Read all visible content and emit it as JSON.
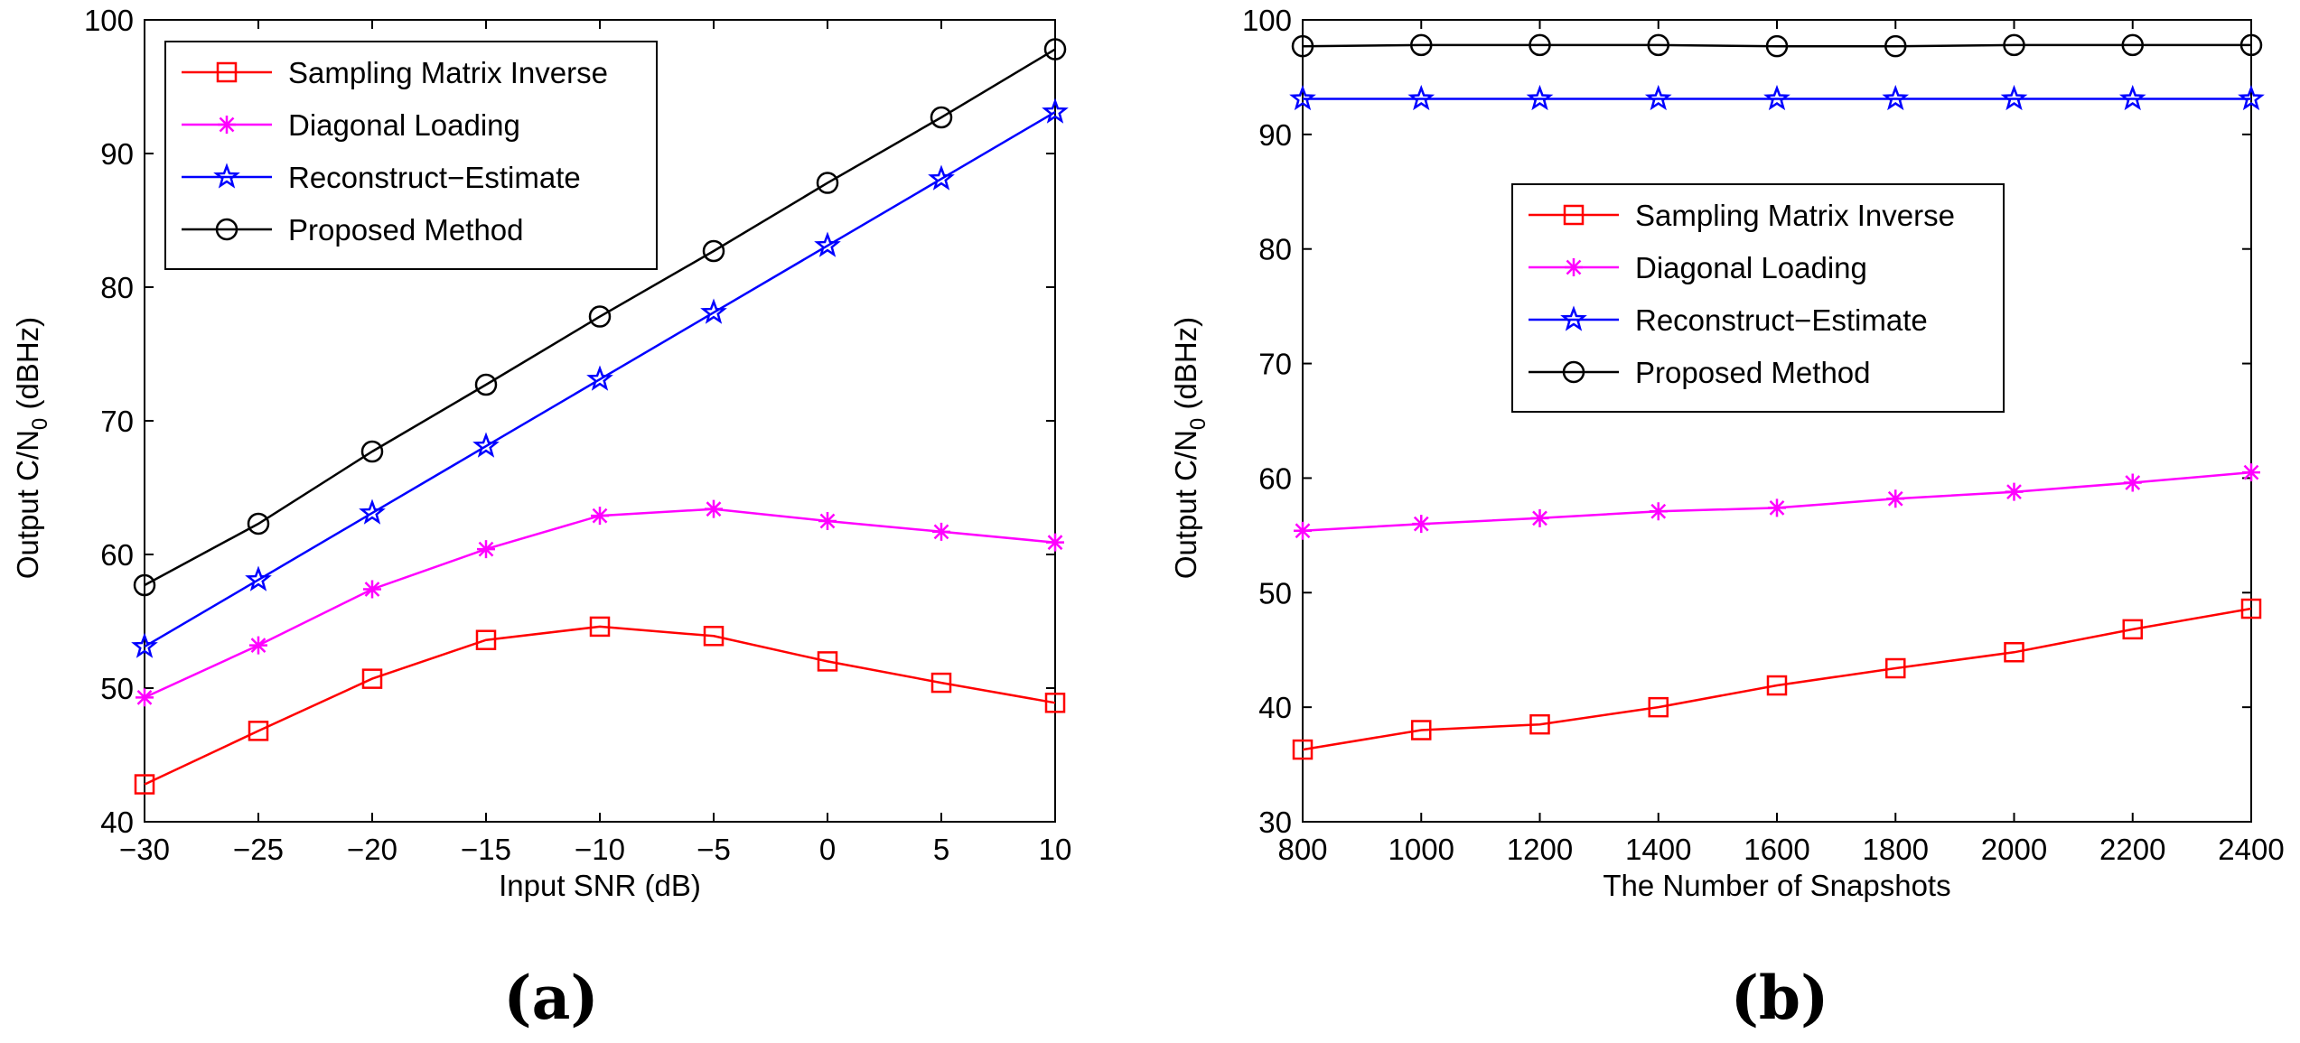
{
  "chart_data": [
    {
      "type": "line",
      "panel_label": "(a)",
      "xlabel": "Input SNR (dB)",
      "ylabel_main": "Output C/N",
      "ylabel_sub": "0",
      "ylabel_unit": " (dBHz)",
      "xlim": [
        -30,
        10
      ],
      "ylim": [
        40,
        100
      ],
      "xticks": [
        -30,
        -25,
        -20,
        -15,
        -10,
        -5,
        0,
        5,
        10
      ],
      "xtick_labels": [
        "−30",
        "−25",
        "−20",
        "−15",
        "−10",
        "−5",
        "0",
        "5",
        "10"
      ],
      "yticks": [
        40,
        50,
        60,
        70,
        80,
        90,
        100
      ],
      "ytick_labels": [
        "40",
        "50",
        "60",
        "70",
        "80",
        "90",
        "100"
      ],
      "legend_position": "top-left",
      "x": [
        -30,
        -25,
        -20,
        -15,
        -10,
        -5,
        0,
        5,
        10
      ],
      "series": [
        {
          "name": "Sampling Matrix Inverse",
          "color": "#ff0000",
          "marker": "square",
          "values": [
            42.8,
            46.8,
            50.7,
            53.6,
            54.6,
            53.9,
            52.0,
            50.4,
            48.9
          ]
        },
        {
          "name": "Diagonal Loading",
          "color": "#ff00ff",
          "marker": "asterisk",
          "values": [
            49.3,
            53.2,
            57.4,
            60.4,
            62.9,
            63.4,
            62.5,
            61.7,
            60.9
          ]
        },
        {
          "name": "Reconstruct−Estimate",
          "color": "#0000ff",
          "marker": "star",
          "values": [
            53.1,
            58.1,
            63.1,
            68.1,
            73.1,
            78.1,
            83.1,
            88.1,
            93.1
          ]
        },
        {
          "name": "Proposed Method",
          "color": "#000000",
          "marker": "circle",
          "values": [
            57.7,
            62.3,
            67.7,
            72.7,
            77.8,
            82.7,
            87.8,
            92.7,
            97.8
          ]
        }
      ]
    },
    {
      "type": "line",
      "panel_label": "(b)",
      "xlabel": "The Number of Snapshots",
      "ylabel_main": "Output C/N",
      "ylabel_sub": "0",
      "ylabel_unit": " (dBHz)",
      "xlim": [
        800,
        2400
      ],
      "ylim": [
        30,
        100
      ],
      "xticks": [
        800,
        1000,
        1200,
        1400,
        1600,
        1800,
        2000,
        2200,
        2400
      ],
      "xtick_labels": [
        "800",
        "1000",
        "1200",
        "1400",
        "1600",
        "1800",
        "2000",
        "2200",
        "2400"
      ],
      "yticks": [
        30,
        40,
        50,
        60,
        70,
        80,
        90,
        100
      ],
      "ytick_labels": [
        "30",
        "40",
        "50",
        "60",
        "70",
        "80",
        "90",
        "100"
      ],
      "legend_position": "center",
      "x": [
        800,
        1000,
        1200,
        1400,
        1600,
        1800,
        2000,
        2200,
        2400
      ],
      "series": [
        {
          "name": "Sampling Matrix Inverse",
          "color": "#ff0000",
          "marker": "square",
          "values": [
            36.3,
            38.0,
            38.5,
            40.0,
            41.9,
            43.4,
            44.8,
            46.8,
            48.6
          ]
        },
        {
          "name": "Diagonal Loading",
          "color": "#ff00ff",
          "marker": "asterisk",
          "values": [
            55.4,
            56.0,
            56.5,
            57.1,
            57.4,
            58.2,
            58.8,
            59.6,
            60.5
          ]
        },
        {
          "name": "Reconstruct−Estimate",
          "color": "#0000ff",
          "marker": "star",
          "values": [
            93.1,
            93.1,
            93.1,
            93.1,
            93.1,
            93.1,
            93.1,
            93.1,
            93.1
          ]
        },
        {
          "name": "Proposed Method",
          "color": "#000000",
          "marker": "circle",
          "values": [
            97.7,
            97.8,
            97.8,
            97.8,
            97.7,
            97.7,
            97.8,
            97.8,
            97.8
          ]
        }
      ]
    }
  ]
}
